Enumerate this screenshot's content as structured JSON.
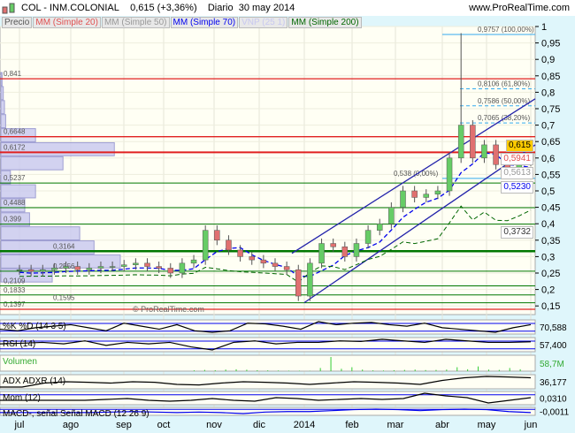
{
  "header": {
    "title": "COL - INM.COLONIAL",
    "price": "0,615 (+3,36%)",
    "period": "Diario",
    "date": "30 may 2014",
    "site": "www.ProRealTime.com",
    "watermark": "© ProRealTime.com"
  },
  "legend": [
    {
      "label": "Precio",
      "color": "#555555"
    },
    {
      "label": "MM (Simple 20)",
      "color": "#e05050"
    },
    {
      "label": "MM (Simple 50)",
      "color": "#999999"
    },
    {
      "label": "MM (Simple 70)",
      "color": "#0000ee"
    },
    {
      "label": "VNP (25 1)",
      "color": "#c8c8f0"
    },
    {
      "label": "MM (Simple 200)",
      "color": "#006600"
    }
  ],
  "colors": {
    "up": "#66cc66",
    "down": "#e07070",
    "resistance": "#e02020",
    "support": "#007700",
    "channel": "#2222aa",
    "fib": "#33aaee"
  },
  "chart_data": {
    "type": "candlestick",
    "x_ticks": [
      "jul",
      "ago",
      "sep",
      "oct",
      "nov",
      "dic",
      "2014",
      "feb",
      "mar",
      "abr",
      "may",
      "jun"
    ],
    "y_ticks": [
      "1",
      "0,95",
      "0,9",
      "0,85",
      "0,8",
      "0,75",
      "0,7",
      "0,65",
      "0,6",
      "0,55",
      "0,5",
      "0,45",
      "0,4",
      "0,35",
      "0,3",
      "0,25",
      "0,2",
      "0,15"
    ],
    "ylim": [
      0.13,
      1.0
    ],
    "weekly_close": [
      0.26,
      0.255,
      0.26,
      0.265,
      0.27,
      0.26,
      0.265,
      0.27,
      0.27,
      0.275,
      0.28,
      0.27,
      0.265,
      0.25,
      0.28,
      0.29,
      0.38,
      0.35,
      0.32,
      0.3,
      0.29,
      0.28,
      0.27,
      0.26,
      0.18,
      0.28,
      0.34,
      0.33,
      0.3,
      0.34,
      0.38,
      0.4,
      0.45,
      0.5,
      0.48,
      0.49,
      0.5,
      0.6,
      0.7,
      0.6,
      0.64,
      0.58,
      0.57,
      0.59,
      0.615
    ],
    "peak_high": 0.98,
    "resistance_levels": [
      {
        "label": "0,841",
        "value": 0.841
      },
      {
        "label": "0,6648",
        "value": 0.6648
      },
      {
        "label": "0,6172",
        "value": 0.6172
      },
      {
        "label": "0,1397",
        "value": 0.1397
      }
    ],
    "support_levels": [
      {
        "label": "0,5237",
        "value": 0.5237
      },
      {
        "label": "0,4488",
        "value": 0.4488
      },
      {
        "label": "0,399",
        "value": 0.399
      },
      {
        "label": "0,3164",
        "value": 0.3164
      },
      {
        "label": "0,2556",
        "value": 0.2556
      },
      {
        "label": "0,2109",
        "value": 0.2109
      },
      {
        "label": "0,1833",
        "value": 0.1833
      },
      {
        "label": "0,1595",
        "value": 0.1595
      }
    ],
    "fibonacci": [
      {
        "label": "0,9757 (100,00%)",
        "value": 0.9757
      },
      {
        "label": "0,8106 (61,80%)",
        "value": 0.8106
      },
      {
        "label": "0,7586 (50,00%)",
        "value": 0.7586
      },
      {
        "label": "0,7065 (38,20%)",
        "value": 0.7065
      },
      {
        "label": "0,538 (0,00%)",
        "value": 0.538
      }
    ],
    "volume_profile": [
      0.01,
      0.02,
      0.03,
      0.04,
      0.29,
      0.95,
      0.52,
      0.08,
      0.29,
      0.2,
      0.24,
      0.66,
      0.78,
      1.0,
      0.43
    ],
    "last_values": [
      {
        "label": "0,615",
        "bg": "#ffcc00",
        "color": "#000000"
      },
      {
        "label": "0,5941",
        "bg": "#ffffff",
        "color": "#e05050"
      },
      {
        "label": "0,5613",
        "bg": "#ffffff",
        "color": "#999999"
      },
      {
        "label": "0,5230",
        "bg": "#ffffff",
        "color": "#0000ee"
      },
      {
        "label": "0,3732",
        "bg": "#ffffff",
        "color": "#333333"
      }
    ],
    "indicators": [
      {
        "label": "%K  %D (14 3 5)",
        "value": "70,588",
        "series": [
          40,
          30,
          50,
          60,
          70,
          50,
          30,
          80,
          60,
          40,
          70,
          30,
          20,
          30,
          80,
          75,
          60,
          40,
          90,
          70,
          80,
          85,
          70,
          60,
          80,
          50,
          40,
          30,
          20,
          50,
          70
        ]
      },
      {
        "label": "RSI (14)",
        "value": "57,400",
        "series": [
          50,
          52,
          55,
          50,
          60,
          45,
          55,
          50,
          55,
          40,
          30,
          55,
          60,
          50,
          55,
          55,
          60,
          58,
          65,
          60,
          55,
          65,
          60,
          55,
          55,
          57
        ]
      },
      {
        "label": "Volumen",
        "value": "58,7M",
        "series": [
          0,
          0,
          0,
          0,
          0,
          5,
          8,
          6,
          10,
          12,
          9,
          6,
          5,
          4,
          3,
          3,
          2,
          20,
          90,
          15,
          25,
          10,
          5,
          4,
          6,
          8,
          10,
          7,
          8,
          10,
          25,
          12,
          30,
          10,
          8,
          20,
          12
        ]
      },
      {
        "label": "ADX  ADXR (14)",
        "value": "36,177",
        "series": [
          10,
          10,
          25,
          30,
          28,
          25,
          30,
          28,
          20,
          18,
          25,
          30,
          28,
          25,
          20,
          25,
          30,
          28,
          25,
          20,
          35,
          45,
          50,
          48,
          45
        ]
      },
      {
        "label": "Mom (12)",
        "value": "0,0310",
        "series": [
          0,
          0,
          0,
          0,
          0,
          0.01,
          0.02,
          0,
          -0.01,
          0,
          0.02,
          0,
          -0.01,
          0.03,
          0.02,
          0,
          0.01,
          0.02,
          0.01,
          0.02,
          0.08,
          0.05,
          0.03,
          -0.03,
          0,
          0.03
        ]
      },
      {
        "label": "MACD-, señal  Señal  MACD (12 26 9)",
        "value": "-0,0011",
        "series": [
          0,
          0,
          0,
          0,
          0,
          0.005,
          0.01,
          0.005,
          0,
          0.005,
          0,
          -0.01,
          0.005,
          0.01,
          0.01,
          0.02,
          0.03,
          0.035,
          0.03,
          0.02,
          0.03,
          0.035,
          0.03,
          0.01,
          0
        ]
      }
    ]
  }
}
